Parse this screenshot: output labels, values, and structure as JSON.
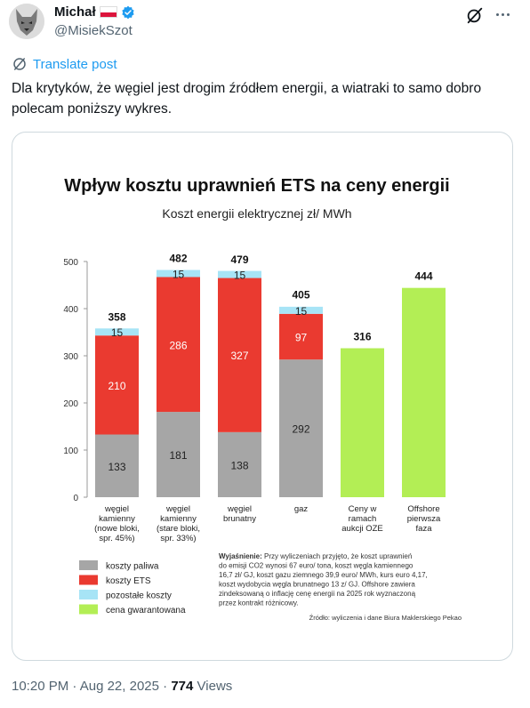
{
  "post": {
    "display_name": "Michał",
    "handle": "@MisiekSzot",
    "translate_label": "Translate post",
    "text": "Dla krytyków, że węgiel jest drogim źródłem energii, a wiatraki to samo dobro polecam poniższy wykres.",
    "time": "10:20 PM",
    "date": "Aug 22, 2025",
    "separator": "·",
    "views_count": "774",
    "views_label": "Views"
  },
  "colors": {
    "coal_fuel": "#a6a6a6",
    "ets": "#ea3a30",
    "other": "#a7e4f6",
    "guaranteed": "#b3ee55",
    "link": "#1d9bf0"
  },
  "icons": [
    "avatar-wolf",
    "flag-pl-icon",
    "verified-badge-icon",
    "grok-icon",
    "more-icon",
    "translate-icon"
  ],
  "chart_data": {
    "type": "bar",
    "stacked": true,
    "title": "Wpływ kosztu uprawnień ETS na ceny energii",
    "subtitle": "Koszt energii elektrycznej zł/ MWh",
    "ylim": [
      0,
      500
    ],
    "yticks": [
      0,
      100,
      200,
      300,
      400,
      500
    ],
    "grid": false,
    "categories": [
      [
        "węgiel",
        "kamienny",
        "(nowe bloki,",
        "spr. 45%)"
      ],
      [
        "węgiel",
        "kamienny",
        "(stare bloki,",
        "spr. 33%)"
      ],
      [
        "węgiel",
        "brunatny"
      ],
      [
        "gaz"
      ],
      [
        "Ceny w",
        "ramach",
        "aukcji OZE"
      ],
      [
        "Offshore",
        "pierwsza",
        "faza"
      ]
    ],
    "totals": [
      358,
      482,
      479,
      405,
      316,
      444
    ],
    "series": [
      {
        "name": "koszty paliwa",
        "color": "#a6a6a6",
        "values": [
          133,
          181,
          138,
          292,
          0,
          0
        ]
      },
      {
        "name": "koszty ETS",
        "color": "#ea3a30",
        "values": [
          210,
          286,
          327,
          97,
          0,
          0
        ]
      },
      {
        "name": "pozostałe koszty",
        "color": "#a7e4f6",
        "values": [
          15,
          15,
          15,
          15,
          0,
          0
        ]
      },
      {
        "name": "cena gwarantowana",
        "color": "#b3ee55",
        "values": [
          0,
          0,
          0,
          0,
          316,
          444
        ]
      }
    ],
    "note_lines": [
      "Wyjaśnienie: Przy wyliczeniach przyjęto, że koszt uprawnień",
      "do emisji CO2 wynosi 67 euro/ tona, koszt węgla kamiennego",
      "16,7 zł/ GJ, koszt gazu ziemnego 39,9 euro/ MWh, kurs euro 4,17,",
      "koszt wydobycia węgla brunatnego 13 z/ GJ. Offshore zawiera",
      "zindeksowaną o inflację cenę energii na 2025 rok wyznaczoną",
      "przez kontrakt różnicowy."
    ],
    "source": "Źródło: wyliczenia i dane Biura Maklerskiego Pekao"
  }
}
